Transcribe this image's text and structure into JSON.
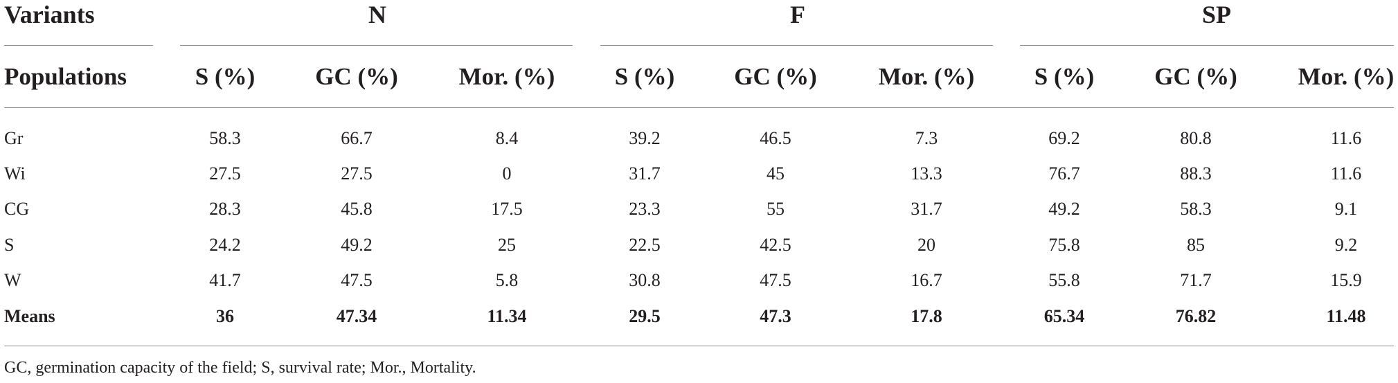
{
  "table": {
    "variants_label": "Variants",
    "populations_label": "Populations",
    "groups": [
      {
        "name": "N",
        "columns": [
          "S (%)",
          "GC (%)",
          "Mor. (%)"
        ]
      },
      {
        "name": "F",
        "columns": [
          "S (%)",
          "GC (%)",
          "Mor. (%)"
        ]
      },
      {
        "name": "SP",
        "columns": [
          "S (%)",
          "GC (%)",
          "Mor. (%)"
        ]
      }
    ],
    "rows": [
      {
        "population": "Gr",
        "values": [
          "58.3",
          "66.7",
          "8.4",
          "39.2",
          "46.5",
          "7.3",
          "69.2",
          "80.8",
          "11.6"
        ]
      },
      {
        "population": "Wi",
        "values": [
          "27.5",
          "27.5",
          "0",
          "31.7",
          "45",
          "13.3",
          "76.7",
          "88.3",
          "11.6"
        ]
      },
      {
        "population": "CG",
        "values": [
          "28.3",
          "45.8",
          "17.5",
          "23.3",
          "55",
          "31.7",
          "49.2",
          "58.3",
          "9.1"
        ]
      },
      {
        "population": "S",
        "values": [
          "24.2",
          "49.2",
          "25",
          "22.5",
          "42.5",
          "20",
          "75.8",
          "85",
          "9.2"
        ]
      },
      {
        "population": "W",
        "values": [
          "41.7",
          "47.5",
          "5.8",
          "30.8",
          "47.5",
          "16.7",
          "55.8",
          "71.7",
          "15.9"
        ]
      },
      {
        "population": "Means",
        "values": [
          "36",
          "47.34",
          "11.34",
          "29.5",
          "47.3",
          "17.8",
          "65.34",
          "76.82",
          "11.48"
        ],
        "bold": true
      }
    ],
    "footnote": "GC, germination capacity of the field; S, survival rate; Mor., Mortality."
  }
}
